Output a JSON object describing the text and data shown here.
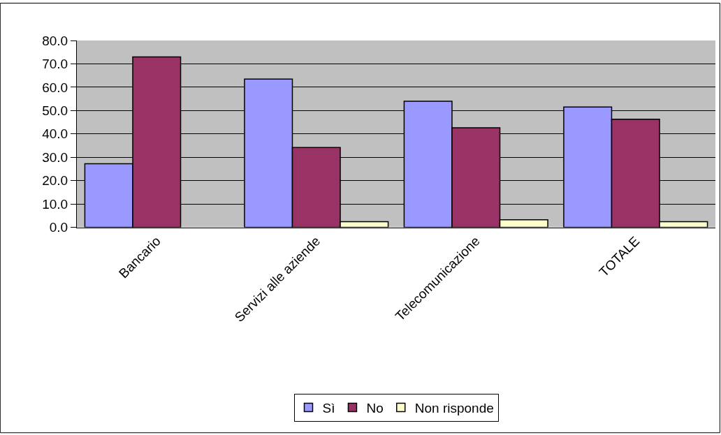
{
  "chart_data": {
    "type": "bar",
    "categories": [
      "Bancario",
      "Servizi alle aziende",
      "Telecomunicazione",
      "TOTALE"
    ],
    "series": [
      {
        "name": "Sì",
        "color": "#9999ff",
        "values": [
          27.2,
          63.5,
          54.0,
          51.5
        ]
      },
      {
        "name": "No",
        "color": "#993366",
        "values": [
          73.0,
          34.2,
          42.6,
          46.3
        ]
      },
      {
        "name": "Non risponde",
        "color": "#ffffcc",
        "values": [
          null,
          2.4,
          3.2,
          2.4
        ]
      }
    ],
    "ylim": [
      0,
      80
    ],
    "yticks": [
      {
        "value": 0,
        "label": "0.0"
      },
      {
        "value": 10,
        "label": "10.0"
      },
      {
        "value": 20,
        "label": "20.0"
      },
      {
        "value": 30,
        "label": "30.0"
      },
      {
        "value": 40,
        "label": "40.0"
      },
      {
        "value": 50,
        "label": "50.0"
      },
      {
        "value": 60,
        "label": "60.0"
      },
      {
        "value": 70,
        "label": "70.0"
      },
      {
        "value": 80,
        "label": "80.0"
      }
    ],
    "grid": "y",
    "legend": "bottom"
  }
}
